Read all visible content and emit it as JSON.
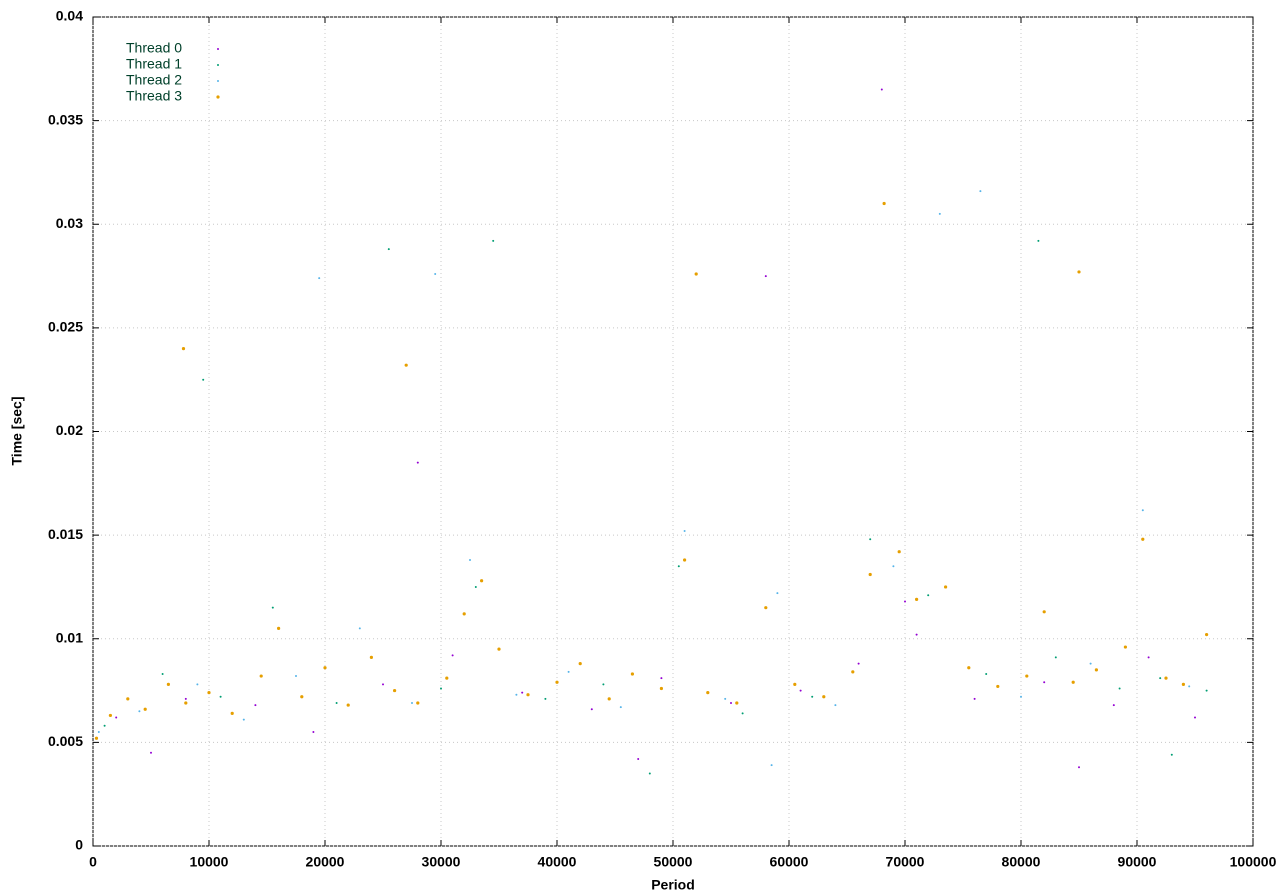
{
  "chart_data": {
    "type": "scatter",
    "xlabel": "Period",
    "ylabel": "Time [sec]",
    "xlim": [
      0,
      100000
    ],
    "ylim": [
      0,
      0.04
    ],
    "xticks": [
      0,
      10000,
      20000,
      30000,
      40000,
      50000,
      60000,
      70000,
      80000,
      90000,
      100000
    ],
    "yticks": [
      0,
      0.005,
      0.01,
      0.015,
      0.02,
      0.025,
      0.03,
      0.035,
      0.04
    ],
    "grid": true,
    "legend": "top-left",
    "series": [
      {
        "name": "Thread 0",
        "color": "#9400d3",
        "x": [
          2000,
          8000,
          14000,
          19000,
          25000,
          31000,
          37000,
          43000,
          49000,
          55000,
          61000,
          66000,
          68000,
          71000,
          76000,
          82000,
          88000,
          91000,
          95000,
          5000,
          28000,
          47000,
          58000,
          70000,
          85000
        ],
        "values": [
          0.0062,
          0.0071,
          0.0068,
          0.0055,
          0.0078,
          0.0092,
          0.0074,
          0.0066,
          0.0081,
          0.0069,
          0.0075,
          0.0088,
          0.0365,
          0.0102,
          0.0071,
          0.0079,
          0.0068,
          0.0091,
          0.0062,
          0.0045,
          0.0185,
          0.0042,
          0.0275,
          0.0118,
          0.0038
        ]
      },
      {
        "name": "Thread 1",
        "color": "#009e73",
        "x": [
          1000,
          6000,
          11000,
          15500,
          21000,
          25500,
          30000,
          33000,
          39000,
          44000,
          50500,
          56000,
          62000,
          67000,
          72000,
          77000,
          83000,
          88500,
          92000,
          96000,
          9500,
          34500,
          48000,
          81500,
          93000
        ],
        "values": [
          0.0058,
          0.0083,
          0.0072,
          0.0115,
          0.0069,
          0.0288,
          0.0076,
          0.0125,
          0.0071,
          0.0078,
          0.0135,
          0.0064,
          0.0072,
          0.0148,
          0.0121,
          0.0083,
          0.0091,
          0.0076,
          0.0081,
          0.0075,
          0.0225,
          0.0292,
          0.0035,
          0.0292,
          0.0044
        ]
      },
      {
        "name": "Thread 2",
        "color": "#56b4e9",
        "x": [
          500,
          4000,
          9000,
          13000,
          17500,
          23000,
          27500,
          32500,
          36500,
          41000,
          45500,
          51000,
          54500,
          59000,
          64000,
          69000,
          73000,
          76500,
          80000,
          86000,
          90500,
          94500,
          19500,
          29500,
          58500
        ],
        "values": [
          0.0055,
          0.0065,
          0.0078,
          0.0061,
          0.0082,
          0.0105,
          0.0069,
          0.0138,
          0.0073,
          0.0084,
          0.0067,
          0.0152,
          0.0071,
          0.0122,
          0.0068,
          0.0135,
          0.0305,
          0.0316,
          0.0072,
          0.0088,
          0.0162,
          0.0077,
          0.0274,
          0.0276,
          0.0039
        ]
      },
      {
        "name": "Thread 3",
        "color": "#e69f00",
        "x": [
          300,
          1500,
          3000,
          4500,
          6500,
          8000,
          10000,
          12000,
          14500,
          16000,
          18000,
          20000,
          22000,
          24000,
          26000,
          28000,
          30500,
          32000,
          33500,
          35000,
          37500,
          40000,
          42000,
          44500,
          46500,
          49000,
          51000,
          53000,
          55500,
          58000,
          60500,
          63000,
          65500,
          67000,
          68200,
          69500,
          71000,
          73500,
          75500,
          78000,
          80500,
          82000,
          84500,
          86500,
          89000,
          90500,
          92500,
          94000,
          96000,
          7800,
          52000,
          85000,
          27000
        ],
        "values": [
          0.0052,
          0.0063,
          0.0071,
          0.0066,
          0.0078,
          0.0069,
          0.0074,
          0.0064,
          0.0082,
          0.0105,
          0.0072,
          0.0086,
          0.0068,
          0.0091,
          0.0075,
          0.0069,
          0.0081,
          0.0112,
          0.0128,
          0.0095,
          0.0073,
          0.0079,
          0.0088,
          0.0071,
          0.0083,
          0.0076,
          0.0138,
          0.0074,
          0.0069,
          0.0115,
          0.0078,
          0.0072,
          0.0084,
          0.0131,
          0.031,
          0.0142,
          0.0119,
          0.0125,
          0.0086,
          0.0077,
          0.0082,
          0.0113,
          0.0079,
          0.0085,
          0.0096,
          0.0148,
          0.0081,
          0.0078,
          0.0102,
          0.024,
          0.0276,
          0.0277,
          0.0232
        ]
      }
    ]
  }
}
